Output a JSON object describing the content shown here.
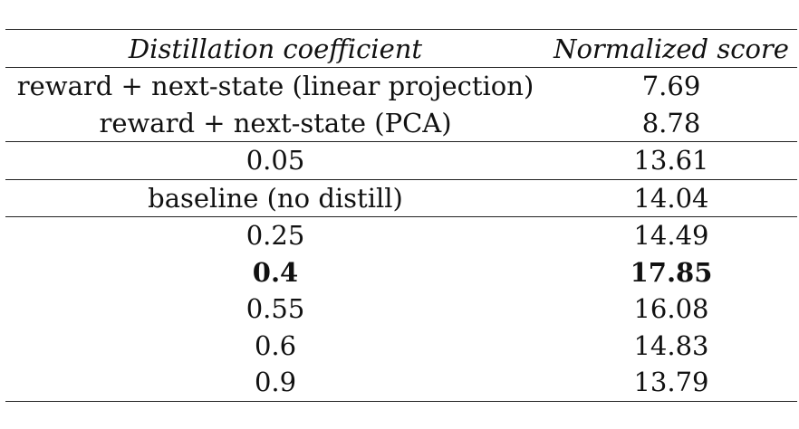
{
  "table": {
    "headers": {
      "coefficient": "Distillation coefficient",
      "score": "Normalized score"
    },
    "rows": [
      {
        "coefficient": "reward + next-state (linear projection)",
        "score": "7.69",
        "bold": false
      },
      {
        "coefficient": "reward + next-state (PCA)",
        "score": "8.78",
        "bold": false
      },
      {
        "coefficient": "0.05",
        "score": "13.61",
        "bold": false
      },
      {
        "coefficient": "baseline (no distill)",
        "score": "14.04",
        "bold": false
      },
      {
        "coefficient": "0.25",
        "score": "14.49",
        "bold": false
      },
      {
        "coefficient": "0.4",
        "score": "17.85",
        "bold": true
      },
      {
        "coefficient": "0.55",
        "score": "16.08",
        "bold": false
      },
      {
        "coefficient": "0.6",
        "score": "14.83",
        "bold": false
      },
      {
        "coefficient": "0.9",
        "score": "13.79",
        "bold": false
      }
    ]
  }
}
